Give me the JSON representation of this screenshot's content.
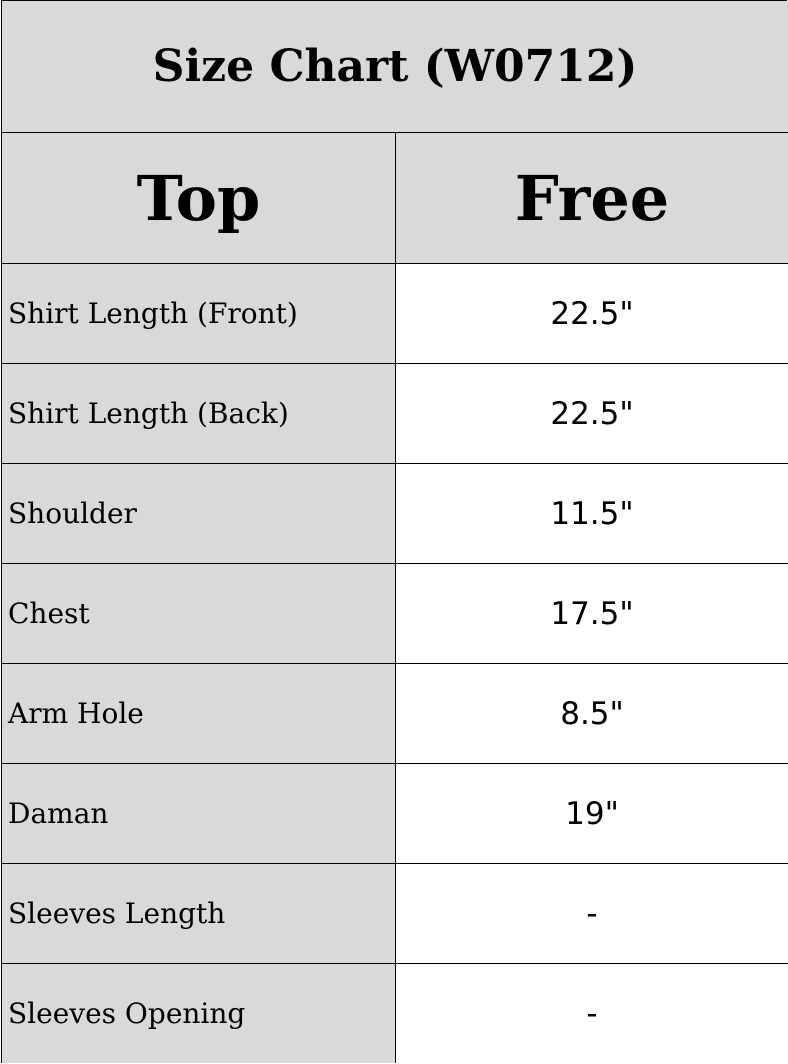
{
  "title": "Size Chart (W0712)",
  "header": {
    "label_column": "Top",
    "size_column": "Free"
  },
  "rows": [
    {
      "label": "Shirt Length (Front)",
      "value": "22.5\""
    },
    {
      "label": "Shirt Length (Back)",
      "value": "22.5\""
    },
    {
      "label": "Shoulder",
      "value": "11.5\""
    },
    {
      "label": "Chest",
      "value": "17.5\""
    },
    {
      "label": "Arm Hole",
      "value": "8.5\""
    },
    {
      "label": "Daman",
      "value": "19\""
    },
    {
      "label": "Sleeves Length",
      "value": "-"
    },
    {
      "label": "Sleeves Opening",
      "value": "-"
    }
  ],
  "colors": {
    "header_bg": "#d9d9d9",
    "value_bg": "#ffffff",
    "border": "#000000"
  }
}
